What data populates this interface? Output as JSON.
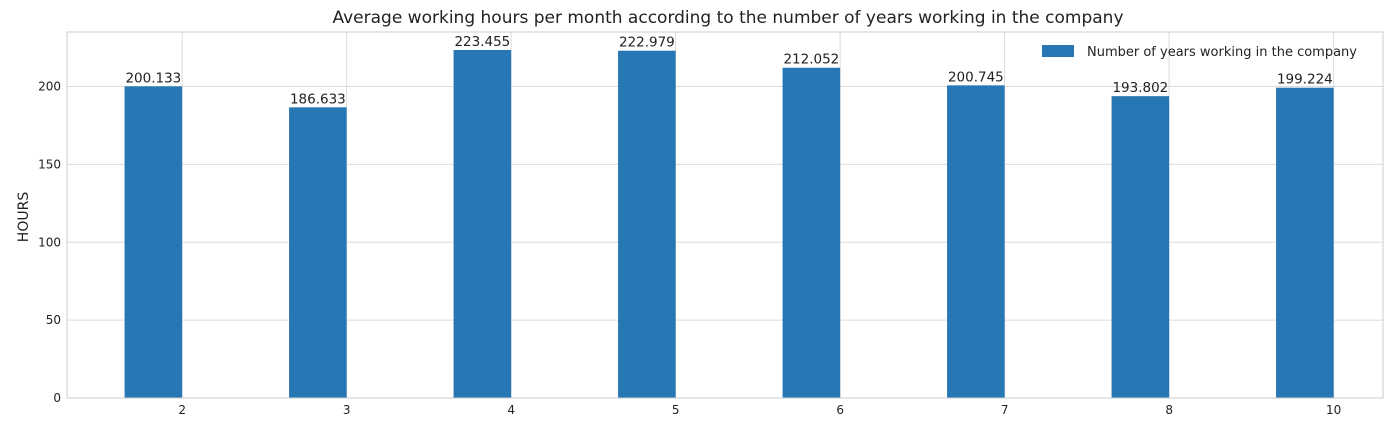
{
  "chart_data": {
    "type": "bar",
    "title": "Average working hours per month according to the number of years working in the company",
    "xlabel": "",
    "ylabel": "HOURS",
    "categories": [
      "2",
      "3",
      "4",
      "5",
      "6",
      "7",
      "8",
      "10"
    ],
    "series": [
      {
        "name": "Number of years working in the company",
        "values": [
          200.133,
          186.633,
          223.455,
          222.979,
          212.052,
          200.745,
          193.802,
          199.224
        ],
        "labels": [
          "200.133",
          "186.633",
          "223.455",
          "222.979",
          "212.052",
          "200.745",
          "193.802",
          "199.224"
        ],
        "color": "#2677b4"
      }
    ],
    "ylim": [
      0,
      235
    ],
    "yticks": [
      0,
      50,
      100,
      150,
      200
    ],
    "grid": true,
    "legend_position": "top-right"
  }
}
